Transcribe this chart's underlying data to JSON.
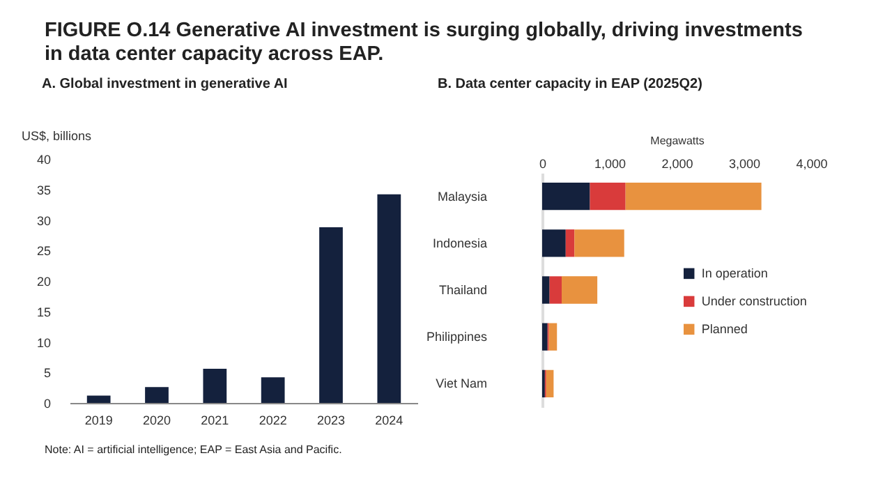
{
  "chart_data": [
    {
      "type": "bar",
      "title": "FIGURE O.14 Generative AI investment is surging globally, driving investments in data center capacity across EAP.",
      "subtitle": "A. Global investment in generative AI",
      "ylabel": "US$, billions",
      "categories": [
        "2019",
        "2020",
        "2021",
        "2022",
        "2023",
        "2024"
      ],
      "values": [
        1.2,
        2.6,
        5.6,
        4.2,
        28.8,
        34.2
      ],
      "color": "#14213d",
      "ylim": [
        0,
        40
      ],
      "yticks": [
        0,
        5,
        10,
        15,
        20,
        25,
        30,
        35,
        40
      ],
      "grid": false,
      "annotations": [
        "Note: AI = artificial intelligence; EAP = East Asia and Pacific."
      ]
    },
    {
      "type": "bar",
      "title": "B. Data center capacity in EAP (2025Q2)",
      "xlabel": "Megawatts",
      "orientation": "horizontal",
      "stacked": true,
      "categories": [
        "Malaysia",
        "Indonesia",
        "Thailand",
        "Philippines",
        "Viet Nam"
      ],
      "series": [
        {
          "name": "In operation",
          "color": "#14213d",
          "values": [
            710,
            350,
            110,
            80,
            40
          ]
        },
        {
          "name": "Under construction",
          "color": "#d93b3b",
          "values": [
            530,
            130,
            180,
            20,
            20
          ]
        },
        {
          "name": "Planned",
          "color": "#e8923f",
          "values": [
            2020,
            740,
            530,
            120,
            110
          ]
        }
      ],
      "xlim": [
        0,
        4000
      ],
      "xticks": [
        0,
        {
          "value": 1000,
          "label": "1,000"
        },
        {
          "value": 2000,
          "label": "2,000"
        },
        {
          "value": 3000,
          "label": "3,000"
        },
        {
          "value": 4000,
          "label": "4,000"
        }
      ],
      "grid": false,
      "legend": "right"
    }
  ]
}
